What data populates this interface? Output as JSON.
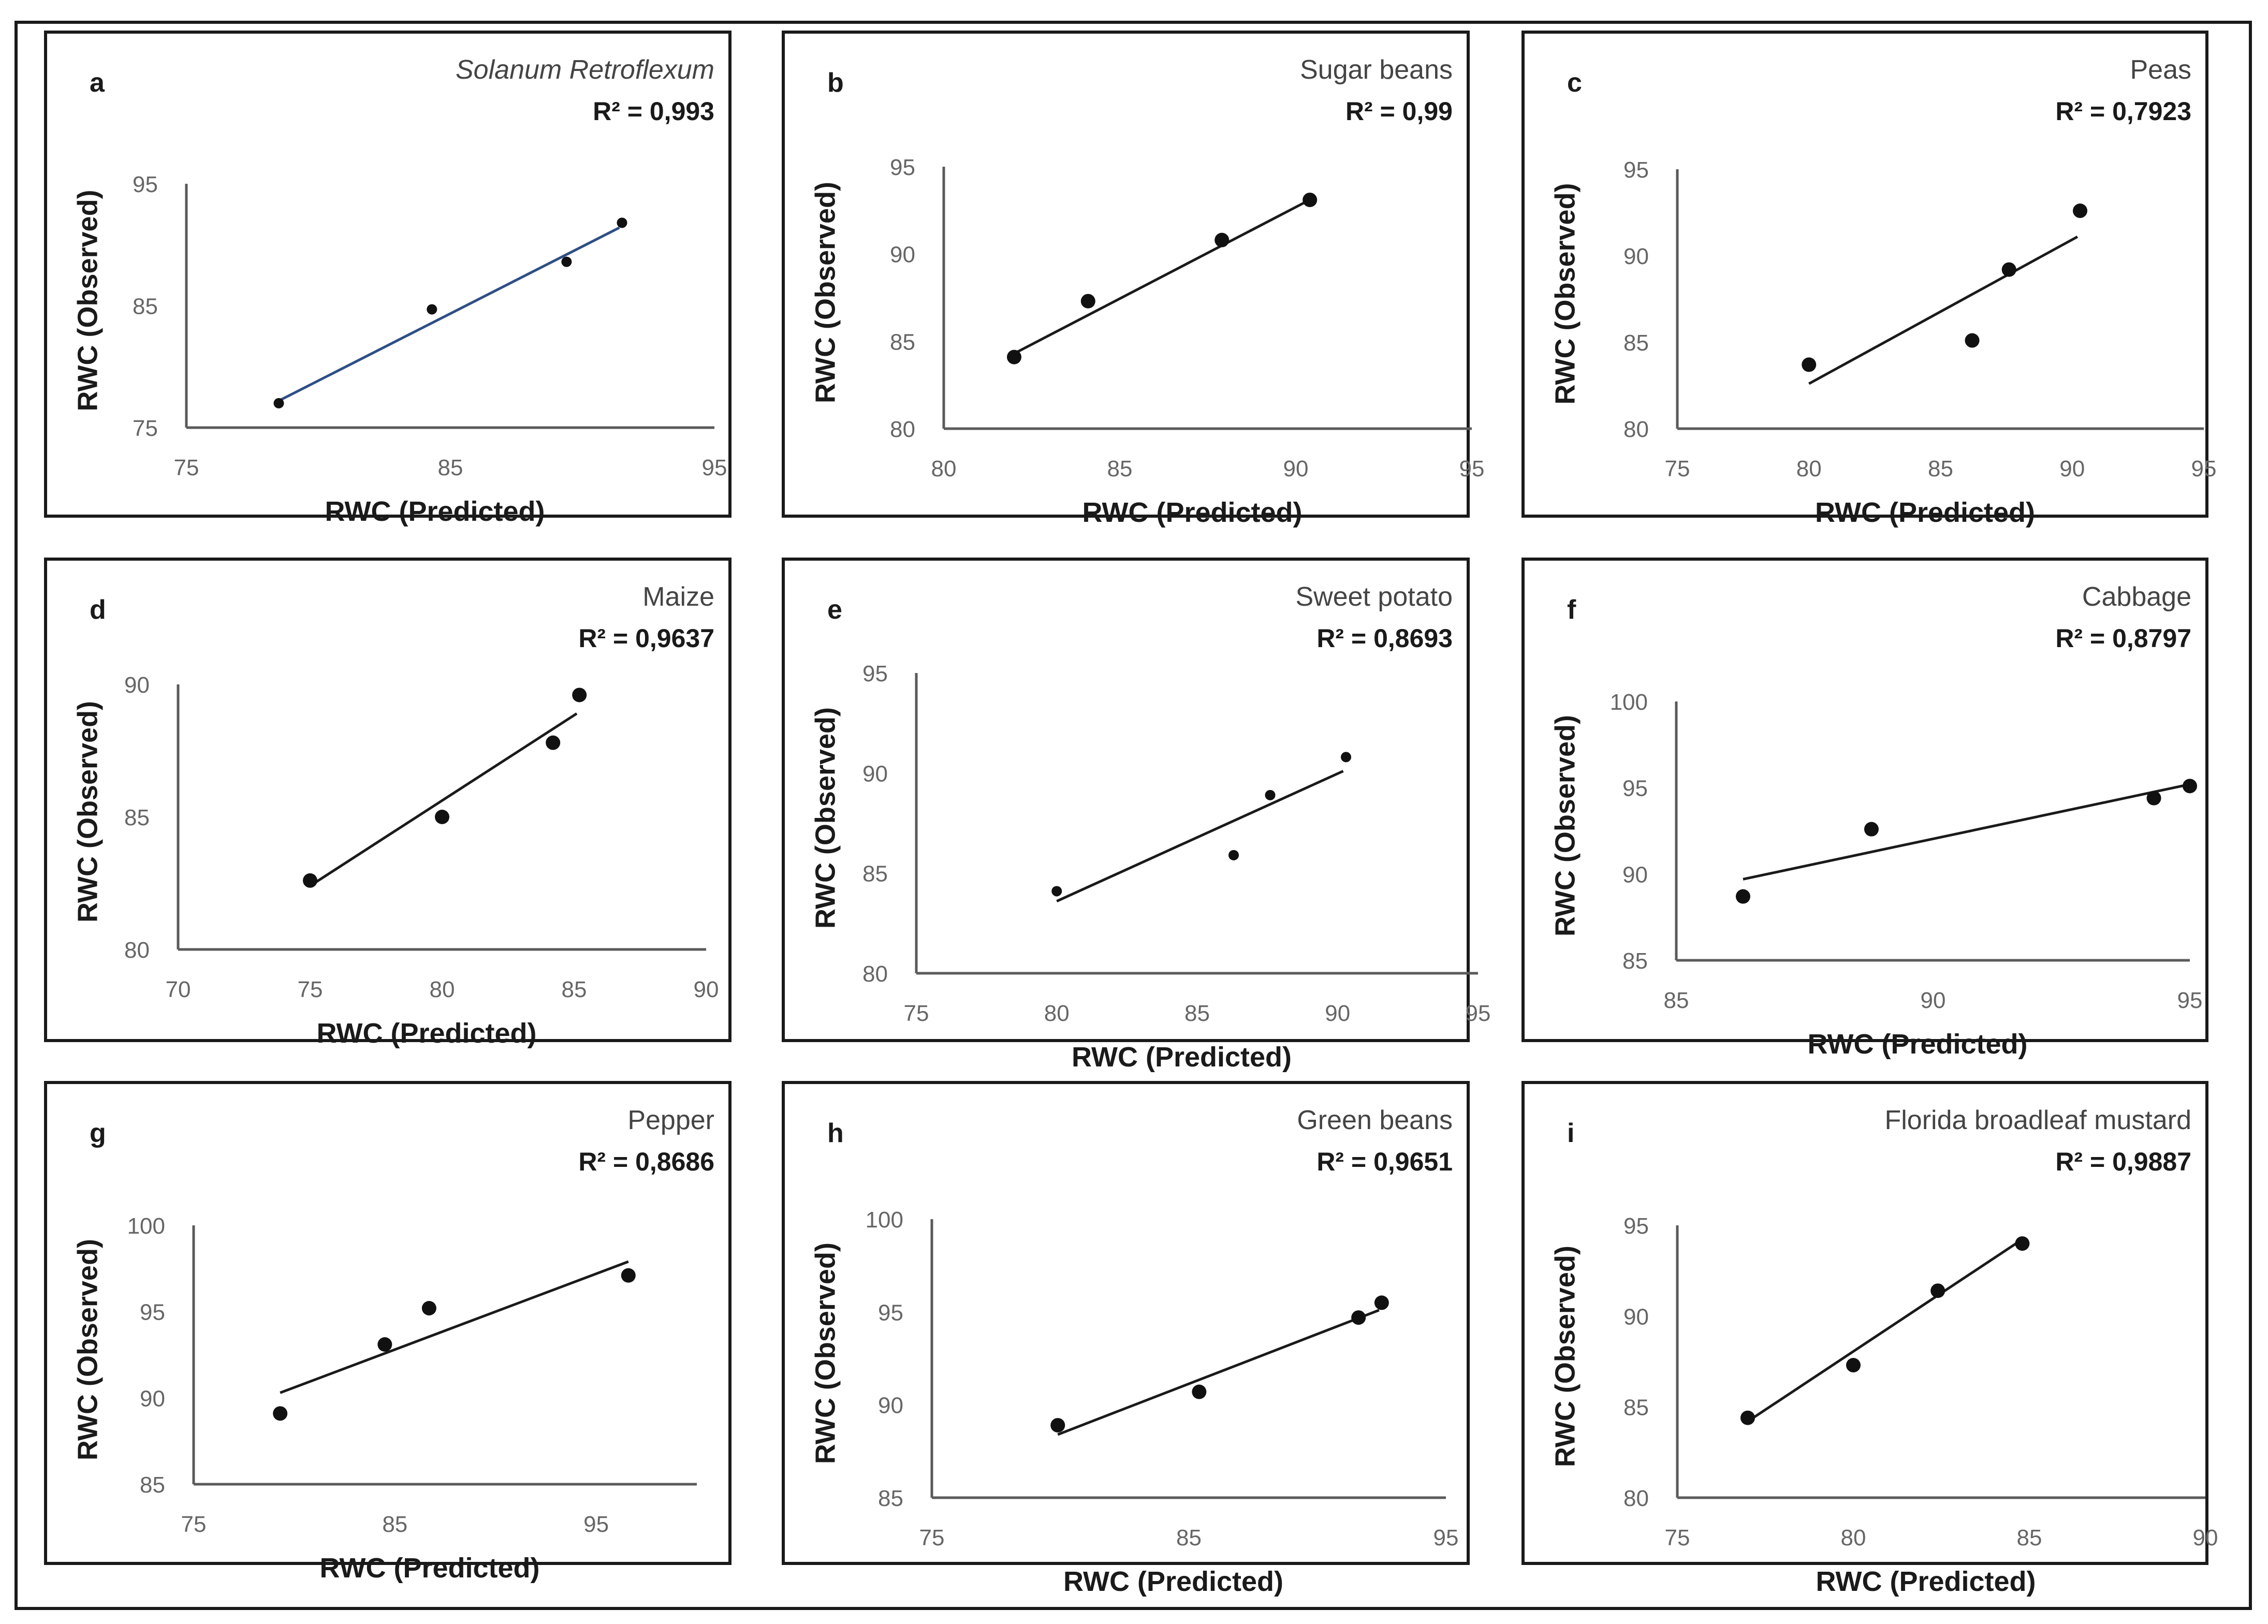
{
  "figure": {
    "axis_label_x": "RWC (Predicted)",
    "axis_label_y": "RWC (Observed)"
  },
  "chart_data": [
    {
      "panel": "a",
      "type": "scatter",
      "title": "Solanum Retroflexum",
      "title_italic": true,
      "r2_label": "R² = 0,993",
      "xlabel": "RWC (Predicted)",
      "ylabel": "RWC (Observed)",
      "xlim": [
        75,
        95
      ],
      "ylim": [
        75,
        95
      ],
      "xticks": [
        75,
        85,
        95
      ],
      "yticks": [
        75,
        85,
        95
      ],
      "x": [
        78.5,
        84.3,
        89.4,
        91.5
      ],
      "y": [
        77.0,
        84.7,
        88.6,
        91.8
      ],
      "trendline": [
        [
          78.5,
          77.2
        ],
        [
          91.4,
          91.4
        ]
      ],
      "trend_color": "#2f4e86"
    },
    {
      "panel": "b",
      "type": "scatter",
      "title": "Sugar beans",
      "title_italic": false,
      "r2_label": "R² = 0,99",
      "xlabel": "RWC (Predicted)",
      "ylabel": "RWC (Observed)",
      "xlim": [
        80,
        95
      ],
      "ylim": [
        80,
        95
      ],
      "xticks": [
        80,
        85,
        90,
        95
      ],
      "yticks": [
        80,
        85,
        90,
        95
      ],
      "x": [
        82.0,
        84.1,
        87.9,
        90.4
      ],
      "y": [
        84.1,
        87.3,
        90.8,
        93.1
      ],
      "trendline": [
        [
          82.0,
          84.3
        ],
        [
          90.3,
          93.0
        ]
      ],
      "trend_color": "#1a1a1a"
    },
    {
      "panel": "c",
      "type": "scatter",
      "title": "Peas",
      "title_italic": false,
      "r2_label": "R² = 0,7923",
      "xlabel": "RWC (Predicted)",
      "ylabel": "RWC (Observed)",
      "xlim": [
        75,
        95
      ],
      "ylim": [
        80,
        95
      ],
      "xticks": [
        75,
        80,
        85,
        90,
        95
      ],
      "yticks": [
        80,
        85,
        90,
        95
      ],
      "x": [
        80.0,
        86.2,
        87.6,
        90.3
      ],
      "y": [
        83.7,
        85.1,
        89.2,
        92.6
      ],
      "trendline": [
        [
          80.0,
          82.6
        ],
        [
          90.2,
          91.1
        ]
      ],
      "trend_color": "#1a1a1a"
    },
    {
      "panel": "d",
      "type": "scatter",
      "title": "Maize",
      "title_italic": false,
      "r2_label": "R² = 0,9637",
      "xlabel": "RWC (Predicted)",
      "ylabel": "RWC (Observed)",
      "xlim": [
        70,
        90
      ],
      "ylim": [
        80,
        90
      ],
      "xticks": [
        70,
        75,
        80,
        85,
        90
      ],
      "yticks": [
        80,
        85,
        90
      ],
      "x": [
        75.0,
        80.0,
        84.2,
        85.2
      ],
      "y": [
        82.6,
        85.0,
        87.8,
        89.6
      ],
      "trendline": [
        [
          75.0,
          82.4
        ],
        [
          85.1,
          88.9
        ]
      ],
      "trend_color": "#1a1a1a"
    },
    {
      "panel": "e",
      "type": "scatter",
      "title": "Sweet potato",
      "title_italic": false,
      "r2_label": "R² = 0,8693",
      "xlabel": "RWC (Predicted)",
      "ylabel": "RWC (Observed)",
      "xlim": [
        75,
        95
      ],
      "ylim": [
        80,
        95
      ],
      "xticks": [
        75,
        80,
        85,
        90,
        95
      ],
      "yticks": [
        80,
        85,
        90,
        95
      ],
      "x": [
        80.0,
        86.3,
        87.6,
        90.3
      ],
      "y": [
        84.1,
        85.9,
        88.9,
        90.8
      ],
      "trendline": [
        [
          80.0,
          83.6
        ],
        [
          90.2,
          90.1
        ]
      ],
      "trend_color": "#1a1a1a"
    },
    {
      "panel": "f",
      "type": "scatter",
      "title": "Cabbage",
      "title_italic": false,
      "r2_label": "R² = 0,8797",
      "xlabel": "RWC (Predicted)",
      "ylabel": "RWC (Observed)",
      "xlim": [
        85,
        95
      ],
      "ylim": [
        85,
        100
      ],
      "xticks": [
        85,
        90,
        95
      ],
      "yticks": [
        85,
        90,
        95,
        100
      ],
      "x": [
        86.3,
        88.8,
        94.3,
        95.0
      ],
      "y": [
        88.7,
        92.6,
        94.4,
        95.1
      ],
      "trendline": [
        [
          86.3,
          89.7
        ],
        [
          95.0,
          95.2
        ]
      ],
      "trend_color": "#1a1a1a"
    },
    {
      "panel": "g",
      "type": "scatter",
      "title": "Pepper",
      "title_italic": false,
      "r2_label": "R² = 0,8686",
      "xlabel": "RWC (Predicted)",
      "ylabel": "RWC (Observed)",
      "xlim": [
        75,
        100
      ],
      "ylim": [
        85,
        100
      ],
      "xticks": [
        75,
        85,
        95
      ],
      "yticks": [
        85,
        90,
        95,
        100
      ],
      "x": [
        79.3,
        84.5,
        86.7,
        96.6
      ],
      "y": [
        89.1,
        93.1,
        95.2,
        97.1
      ],
      "trendline": [
        [
          79.3,
          90.3
        ],
        [
          96.6,
          97.9
        ]
      ],
      "trend_color": "#1a1a1a"
    },
    {
      "panel": "h",
      "type": "scatter",
      "title": "Green beans",
      "title_italic": false,
      "r2_label": "R² = 0,9651",
      "xlabel": "RWC (Predicted)",
      "ylabel": "RWC (Observed)",
      "xlim": [
        75,
        95
      ],
      "ylim": [
        85,
        100
      ],
      "xticks": [
        75,
        85,
        95
      ],
      "yticks": [
        85,
        90,
        95,
        100
      ],
      "x": [
        79.9,
        85.4,
        91.6,
        92.5
      ],
      "y": [
        88.9,
        90.7,
        94.7,
        95.5
      ],
      "trendline": [
        [
          79.9,
          88.4
        ],
        [
          92.4,
          95.1
        ]
      ],
      "trend_color": "#1a1a1a"
    },
    {
      "panel": "i",
      "type": "scatter",
      "title": "Florida broadleaf mustard",
      "title_italic": false,
      "r2_label": "R² = 0,9887",
      "xlabel": "RWC (Predicted)",
      "ylabel": "RWC (Observed)",
      "xlim": [
        75,
        90
      ],
      "ylim": [
        80,
        95
      ],
      "xticks": [
        75,
        80,
        85,
        90
      ],
      "yticks": [
        80,
        85,
        90,
        95
      ],
      "x": [
        77.0,
        80.0,
        82.4,
        84.8
      ],
      "y": [
        84.4,
        87.3,
        91.4,
        94.0
      ],
      "trendline": [
        [
          77.0,
          84.2
        ],
        [
          84.7,
          94.1
        ]
      ],
      "trend_color": "#1a1a1a"
    }
  ]
}
